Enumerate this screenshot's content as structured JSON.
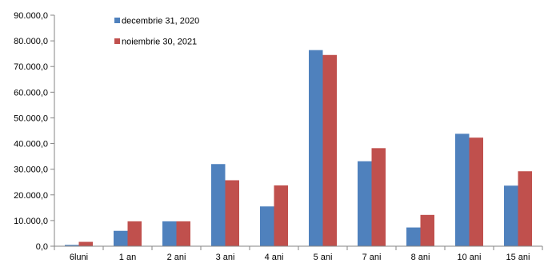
{
  "chart_data": {
    "type": "bar",
    "categories": [
      "6luni",
      "1 an",
      "2 ani",
      "3 ani",
      "4 ani",
      "5 ani",
      "7 ani",
      "8 ani",
      "10 ani",
      "15 ani"
    ],
    "series": [
      {
        "name": "decembrie 31, 2020",
        "color": "#4F81BD",
        "values": [
          500,
          6000,
          9700,
          32000,
          15500,
          76400,
          33100,
          7300,
          43800,
          23600
        ]
      },
      {
        "name": "noiembrie 30, 2021",
        "color": "#C0504D",
        "values": [
          1700,
          9700,
          9700,
          25700,
          23700,
          74500,
          38200,
          12200,
          42300,
          29200
        ]
      }
    ],
    "y_ticks": [
      "0,0",
      "10.000,0",
      "20.000,0",
      "30.000,0",
      "40.000,0",
      "50.000,0",
      "60.000,0",
      "70.000,0",
      "80.000,0",
      "90.000,0"
    ],
    "ylim": [
      0,
      90000
    ],
    "title": "",
    "xlabel": "",
    "ylabel": "",
    "grid": false,
    "legend_position": "top-left"
  }
}
